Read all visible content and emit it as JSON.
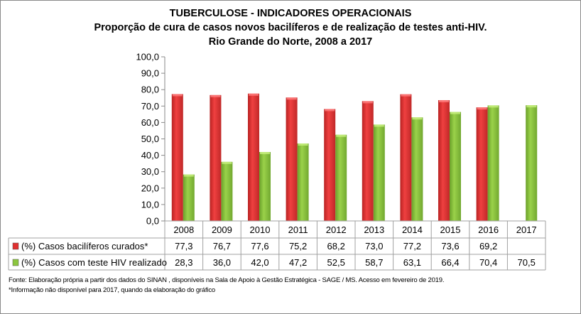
{
  "chart_data": {
    "type": "bar",
    "title": "TUBERCULOSE - INDICADORES OPERACIONAIS",
    "subtitle": "Proporção de cura de casos novos bacilíferos e de realização de testes anti-HIV.",
    "subtitle2": "Rio Grande do Norte, 2008 a 2017",
    "categories": [
      "2008",
      "2009",
      "2010",
      "2011",
      "2012",
      "2013",
      "2014",
      "2015",
      "2016",
      "2017"
    ],
    "yticks": [
      "0,0",
      "10,0",
      "20,0",
      "30,0",
      "40,0",
      "50,0",
      "60,0",
      "70,0",
      "80,0",
      "90,0",
      "100,0"
    ],
    "ylim": [
      0,
      100
    ],
    "grid": false,
    "legend": "data-table",
    "series": [
      {
        "name": "(%) Casos bacilíferos curados*",
        "color": "#e03030",
        "values": [
          77.3,
          76.7,
          77.6,
          75.2,
          68.2,
          73.0,
          77.2,
          73.6,
          69.2,
          null
        ],
        "labels": [
          "77,3",
          "76,7",
          "77,6",
          "75,2",
          "68,2",
          "73,0",
          "77,2",
          "73,6",
          "69,2",
          ""
        ]
      },
      {
        "name": "(%) Casos com teste HIV realizado",
        "color": "#8cc63e",
        "values": [
          28.3,
          36.0,
          42.0,
          47.2,
          52.5,
          58.7,
          63.1,
          66.4,
          70.4,
          70.5
        ],
        "labels": [
          "28,3",
          "36,0",
          "42,0",
          "47,2",
          "52,5",
          "58,7",
          "63,1",
          "66,4",
          "70,4",
          "70,5"
        ]
      }
    ]
  },
  "notes": {
    "source": "Fonte: Elaboração própria a partir dos dados do SINAN , disponíveis na Sala de  Apoio  à Gestão Estratégica - SAGE / MS. Acesso  em fevereiro de 2019.",
    "footnote": "*Informação não  disponível  para 2017,  quando da elaboração do gráfico"
  }
}
